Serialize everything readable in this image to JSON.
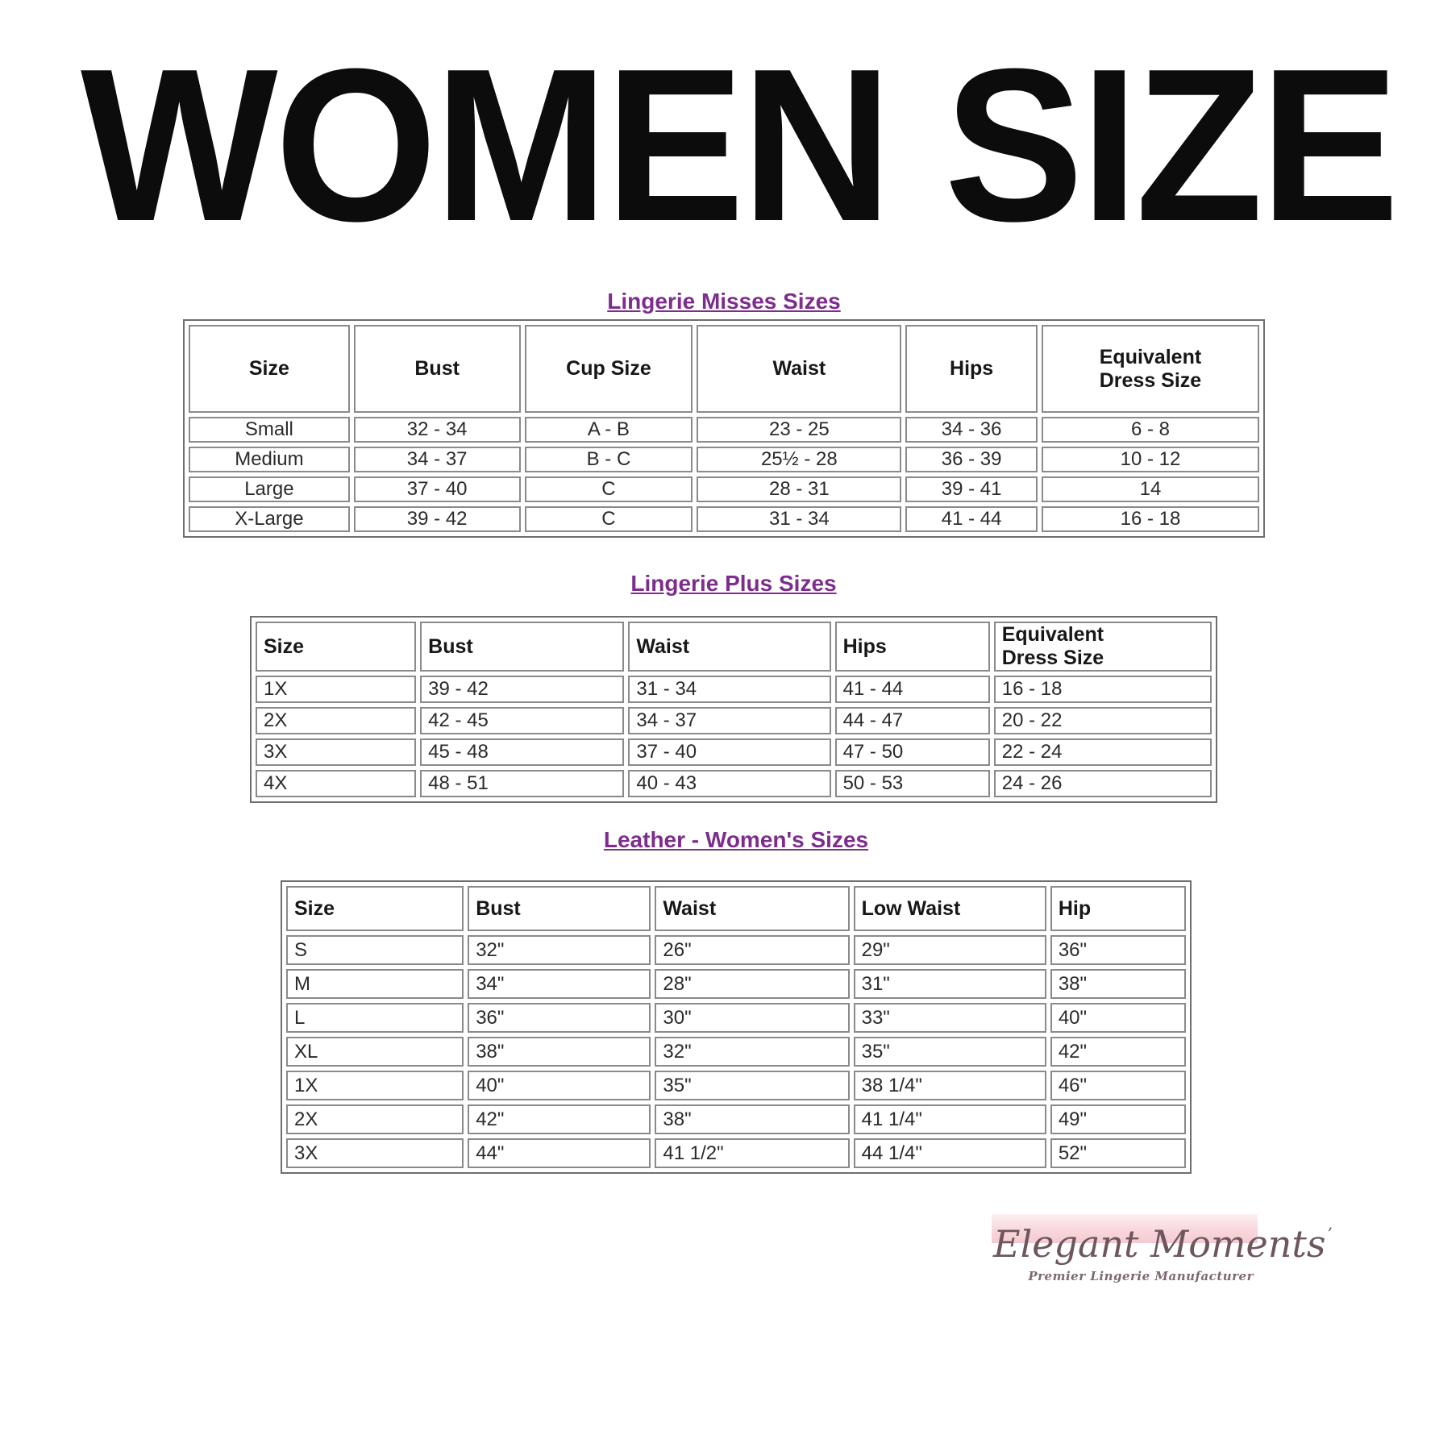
{
  "page": {
    "title": "WOMEN SIZE"
  },
  "sections": [
    {
      "heading": "Lingerie Misses Sizes",
      "table": {
        "columns": [
          "Size",
          "Bust",
          "Cup Size",
          "Waist",
          "Hips",
          "Equivalent Dress Size"
        ],
        "rows": [
          [
            "Small",
            "32 - 34",
            "A - B",
            "23 - 25",
            "34 - 36",
            "6 - 8"
          ],
          [
            "Medium",
            "34 - 37",
            "B - C",
            "25½ - 28",
            "36 - 39",
            "10 - 12"
          ],
          [
            "Large",
            "37 - 40",
            "C",
            "28 - 31",
            "39 - 41",
            "14"
          ],
          [
            "X-Large",
            "39 - 42",
            "C",
            "31 - 34",
            "41 - 44",
            "16 - 18"
          ]
        ]
      }
    },
    {
      "heading": "Lingerie Plus Sizes",
      "table": {
        "columns": [
          "Size",
          "Bust",
          "Waist",
          "Hips",
          "Equivalent Dress Size"
        ],
        "rows": [
          [
            "1X",
            "39 - 42",
            "31 - 34",
            "41 - 44",
            "16 - 18"
          ],
          [
            "2X",
            "42 - 45",
            "34 - 37",
            "44 - 47",
            "20 - 22"
          ],
          [
            "3X",
            "45 - 48",
            "37 - 40",
            "47 - 50",
            "22 - 24"
          ],
          [
            "4X",
            "48 - 51",
            "40 - 43",
            "50 - 53",
            "24 - 26"
          ]
        ]
      }
    },
    {
      "heading": "Leather - Women's Sizes",
      "table": {
        "columns": [
          "Size",
          "Bust",
          "Waist",
          "Low Waist",
          "Hip"
        ],
        "rows": [
          [
            "S",
            "32\"",
            "26\"",
            "29\"",
            "36\""
          ],
          [
            "M",
            "34\"",
            "28\"",
            "31\"",
            "38\""
          ],
          [
            "L",
            "36\"",
            "30\"",
            "33\"",
            "40\""
          ],
          [
            "XL",
            "38\"",
            "32\"",
            "35\"",
            "42\""
          ],
          [
            "1X",
            "40\"",
            "35\"",
            "38 1/4\"",
            "46\""
          ],
          [
            "2X",
            "42\"",
            "38\"",
            "41 1/4\"",
            "49\""
          ],
          [
            "3X",
            "44\"",
            "41 1/2\"",
            "44 1/4\"",
            "52\""
          ]
        ]
      }
    }
  ],
  "logo": {
    "brand": "Elegant Moments",
    "trademark": "’",
    "tagline": "Premier Lingerie Manufacturer"
  },
  "colors": {
    "title_black": "#0c0c0c",
    "heading_purple": "#7d2d8c",
    "table_border_gray": "#8a8a8a",
    "logo_band_pink": "#f5c9d2",
    "logo_text_gray": "#6d575c"
  }
}
